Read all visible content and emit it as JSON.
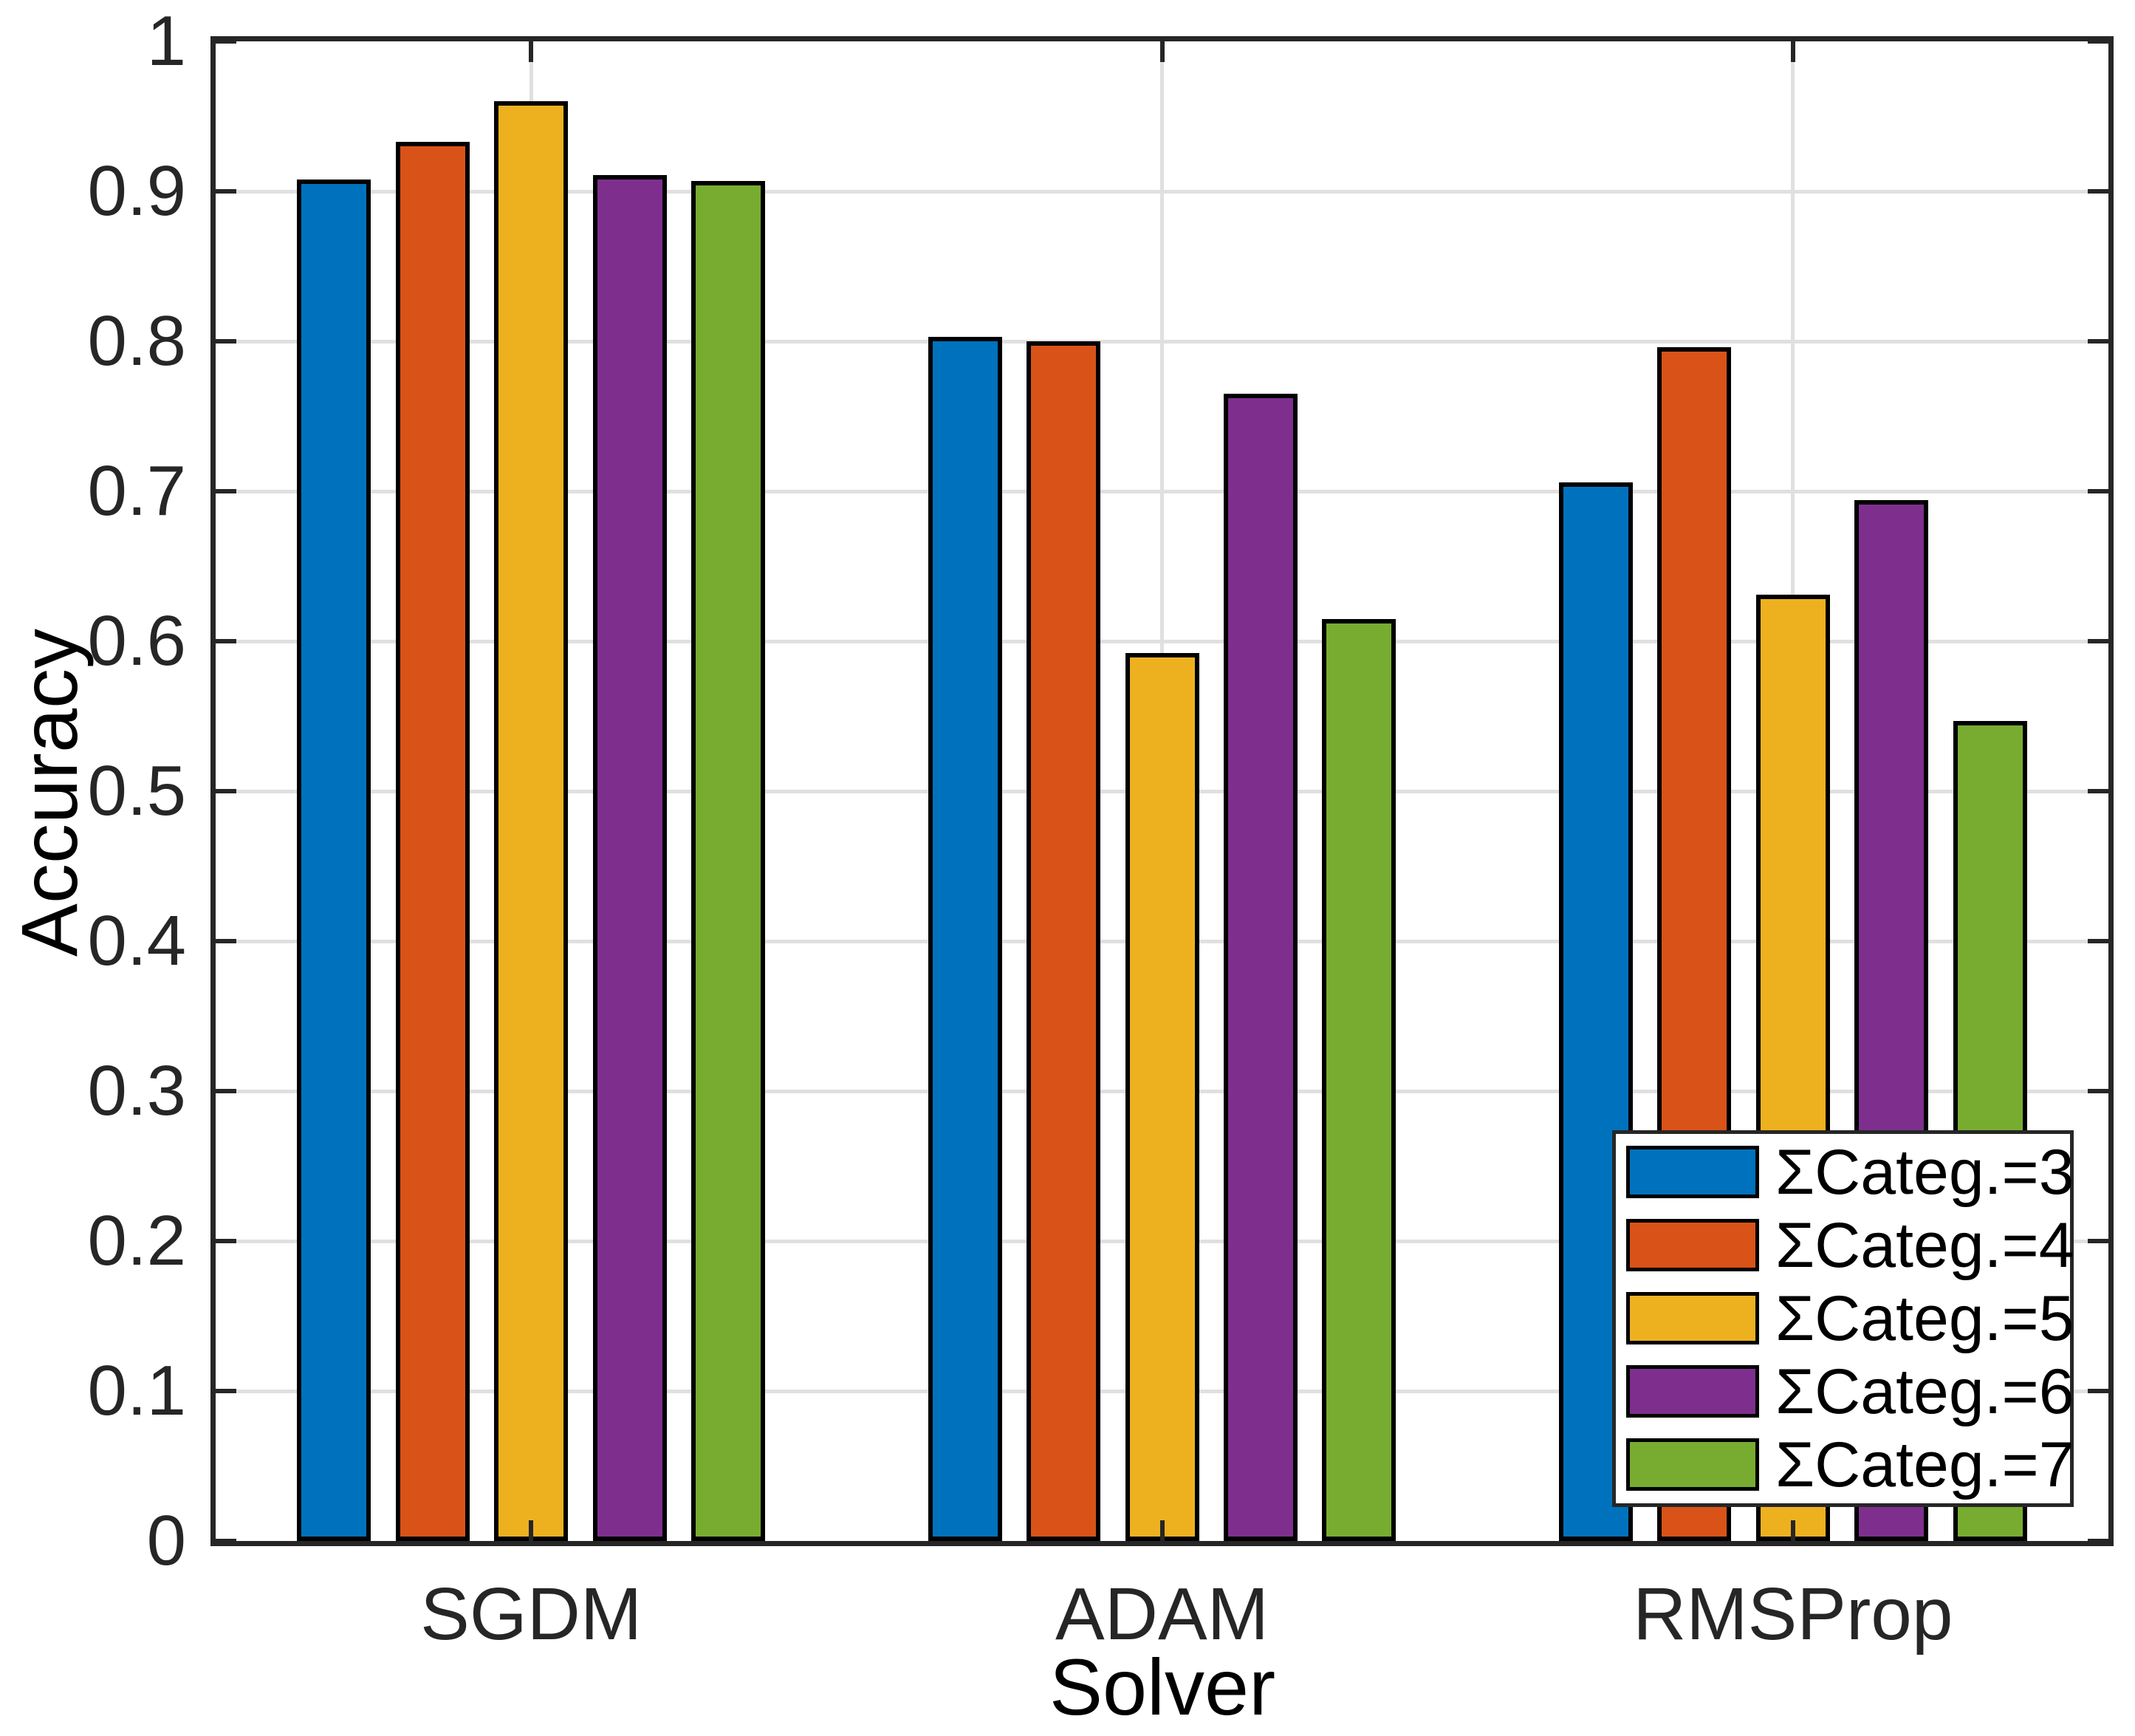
{
  "chart_data": {
    "type": "bar",
    "title": "",
    "xlabel": "Solver",
    "ylabel": "Accuracy",
    "categories": [
      "SGDM",
      "ADAM",
      "RMSProp"
    ],
    "series": [
      {
        "name": "ΣCateg.=3",
        "color": "#0072BD",
        "values": [
          0.908,
          0.803,
          0.706
        ]
      },
      {
        "name": "ΣCateg.=4",
        "color": "#D95319",
        "values": [
          0.933,
          0.8,
          0.796
        ]
      },
      {
        "name": "ΣCateg.=5",
        "color": "#EDB120",
        "values": [
          0.96,
          0.592,
          0.631
        ]
      },
      {
        "name": "ΣCateg.=6",
        "color": "#7E2F8E",
        "values": [
          0.911,
          0.765,
          0.694
        ]
      },
      {
        "name": "ΣCateg.=7",
        "color": "#77AC30",
        "values": [
          0.907,
          0.615,
          0.547
        ]
      }
    ],
    "ylim": [
      0,
      1
    ],
    "yticks": [
      0,
      0.1,
      0.2,
      0.3,
      0.4,
      0.5,
      0.6,
      0.7,
      0.8,
      0.9,
      1
    ],
    "ytick_labels": [
      "0",
      "0.1",
      "0.2",
      "0.3",
      "0.4",
      "0.5",
      "0.6",
      "0.7",
      "0.8",
      "0.9",
      "1"
    ],
    "grid": true,
    "legend_position": "southeast-inside",
    "bar_edge_color": "#000000"
  },
  "axes": {
    "border_color": "#262626",
    "tick_color": "#262626",
    "grid_color": "#e0e0e0",
    "background": "#ffffff"
  }
}
